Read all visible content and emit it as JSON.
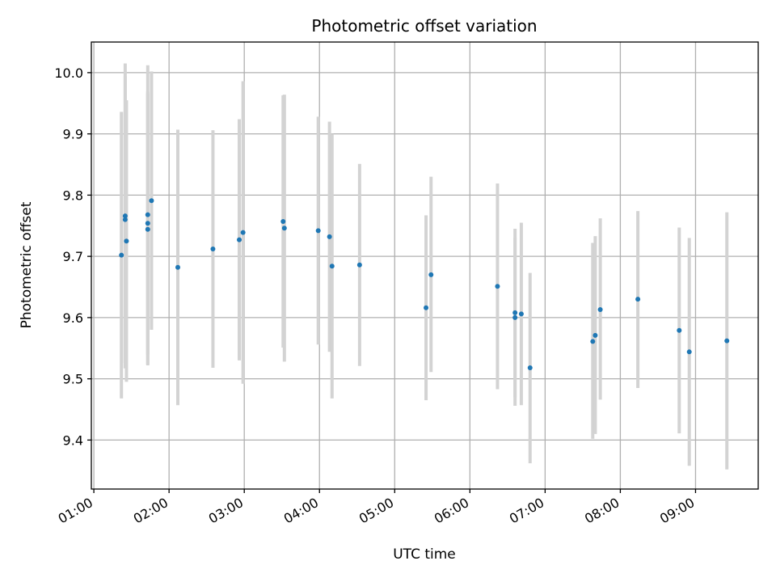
{
  "chart_data": {
    "type": "scatter",
    "title": "Photometric offset variation",
    "xlabel": "UTC time",
    "ylabel": "Photometric offset",
    "xlim": [
      "00:58",
      "09:50"
    ],
    "ylim": [
      9.32,
      10.05
    ],
    "xticks": [
      "01:00",
      "02:00",
      "03:00",
      "04:00",
      "05:00",
      "06:00",
      "07:00",
      "08:00",
      "09:00"
    ],
    "yticks": [
      9.4,
      9.5,
      9.6,
      9.7,
      9.8,
      9.9,
      10.0
    ],
    "grid": true,
    "error_bar_color": "#d3d3d3",
    "marker_color": "#1f77b4",
    "points": [
      {
        "x": "01:22",
        "y": 9.702,
        "ylow": 9.468,
        "yhigh": 9.936
      },
      {
        "x": "01:25",
        "y": 9.766,
        "ylow": 9.517,
        "yhigh": 10.015
      },
      {
        "x": "01:25",
        "y": 9.76,
        "ylow": 9.526,
        "yhigh": 9.994
      },
      {
        "x": "01:26",
        "y": 9.725,
        "ylow": 9.495,
        "yhigh": 9.955
      },
      {
        "x": "01:43",
        "y": 9.768,
        "ylow": 9.524,
        "yhigh": 10.012
      },
      {
        "x": "01:43",
        "y": 9.754,
        "ylow": 9.539,
        "yhigh": 9.969
      },
      {
        "x": "01:43",
        "y": 9.744,
        "ylow": 9.522,
        "yhigh": 9.966
      },
      {
        "x": "01:46",
        "y": 9.791,
        "ylow": 9.58,
        "yhigh": 10.002
      },
      {
        "x": "02:07",
        "y": 9.682,
        "ylow": 9.457,
        "yhigh": 9.907
      },
      {
        "x": "02:35",
        "y": 9.712,
        "ylow": 9.518,
        "yhigh": 9.906
      },
      {
        "x": "02:56",
        "y": 9.727,
        "ylow": 9.53,
        "yhigh": 9.924
      },
      {
        "x": "02:59",
        "y": 9.739,
        "ylow": 9.492,
        "yhigh": 9.986
      },
      {
        "x": "03:31",
        "y": 9.757,
        "ylow": 9.551,
        "yhigh": 9.963
      },
      {
        "x": "03:32",
        "y": 9.746,
        "ylow": 9.528,
        "yhigh": 9.964
      },
      {
        "x": "03:59",
        "y": 9.742,
        "ylow": 9.556,
        "yhigh": 9.928
      },
      {
        "x": "04:08",
        "y": 9.732,
        "ylow": 9.544,
        "yhigh": 9.92
      },
      {
        "x": "04:10",
        "y": 9.684,
        "ylow": 9.468,
        "yhigh": 9.9
      },
      {
        "x": "04:32",
        "y": 9.686,
        "ylow": 9.521,
        "yhigh": 9.851
      },
      {
        "x": "05:25",
        "y": 9.616,
        "ylow": 9.465,
        "yhigh": 9.767
      },
      {
        "x": "05:29",
        "y": 9.67,
        "ylow": 9.511,
        "yhigh": 9.83
      },
      {
        "x": "06:22",
        "y": 9.651,
        "ylow": 9.483,
        "yhigh": 9.819
      },
      {
        "x": "06:36",
        "y": 9.608,
        "ylow": 9.456,
        "yhigh": 9.745
      },
      {
        "x": "06:36",
        "y": 9.6,
        "ylow": 9.47,
        "yhigh": 9.73
      },
      {
        "x": "06:41",
        "y": 9.606,
        "ylow": 9.457,
        "yhigh": 9.755
      },
      {
        "x": "06:48",
        "y": 9.518,
        "ylow": 9.362,
        "yhigh": 9.673
      },
      {
        "x": "07:38",
        "y": 9.561,
        "ylow": 9.402,
        "yhigh": 9.722
      },
      {
        "x": "07:40",
        "y": 9.571,
        "ylow": 9.41,
        "yhigh": 9.733
      },
      {
        "x": "07:44",
        "y": 9.613,
        "ylow": 9.466,
        "yhigh": 9.762
      },
      {
        "x": "08:14",
        "y": 9.63,
        "ylow": 9.485,
        "yhigh": 9.774
      },
      {
        "x": "08:47",
        "y": 9.579,
        "ylow": 9.411,
        "yhigh": 9.747
      },
      {
        "x": "08:55",
        "y": 9.544,
        "ylow": 9.358,
        "yhigh": 9.73
      },
      {
        "x": "09:25",
        "y": 9.562,
        "ylow": 9.352,
        "yhigh": 9.772
      }
    ]
  }
}
